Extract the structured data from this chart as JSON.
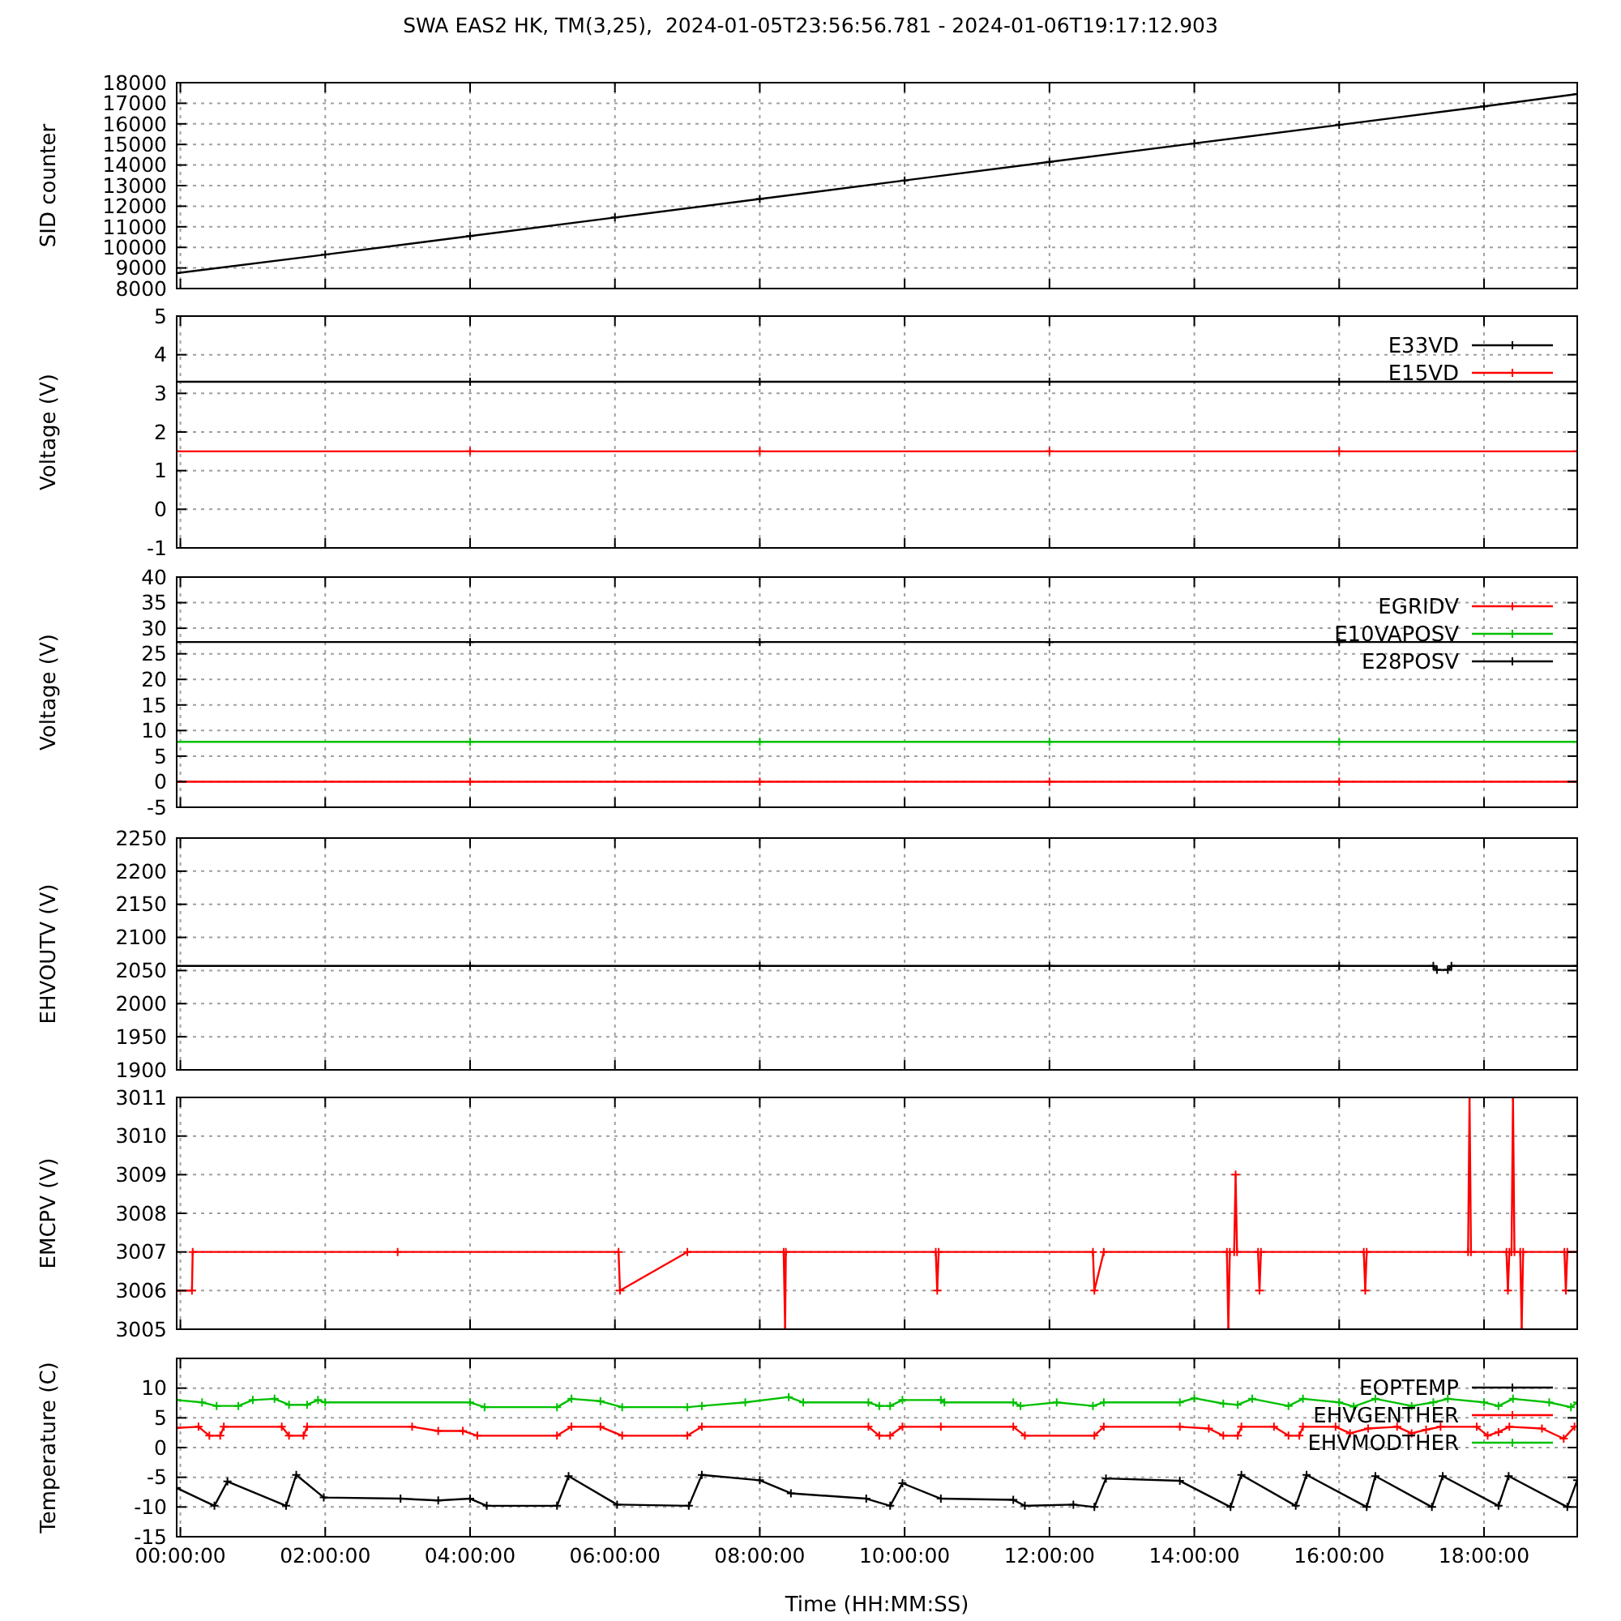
{
  "chart_data": [
    {
      "type": "line",
      "title": "SWA EAS2 HK, TM(3,25),  2024-01-05T23:56:56.781 - 2024-01-06T19:17:12.903",
      "ylabel": "SID counter",
      "xlim": [
        -0.051,
        19.287
      ],
      "xticks": [
        {
          "value": 0,
          "label": null
        },
        {
          "value": 2,
          "label": null
        },
        {
          "value": 4,
          "label": null
        },
        {
          "value": 6,
          "label": null
        },
        {
          "value": 8,
          "label": null
        },
        {
          "value": 10,
          "label": null
        },
        {
          "value": 12,
          "label": null
        },
        {
          "value": 14,
          "label": null
        },
        {
          "value": 16,
          "label": null
        },
        {
          "value": 18,
          "label": null
        }
      ],
      "ylim": [
        8000,
        18000
      ],
      "yticks": [
        8000,
        9000,
        10000,
        11000,
        12000,
        13000,
        14000,
        15000,
        16000,
        17000,
        18000
      ],
      "tick_labels": "y",
      "grid": true,
      "marker": "cross",
      "legend": false,
      "series": [
        {
          "color": "#000000",
          "x": [
            -0.051,
            2,
            4,
            6,
            8,
            10,
            12,
            14,
            16,
            18,
            19.287
          ],
          "values": [
            8750,
            9650,
            10550,
            11450,
            12350,
            13250,
            14150,
            15050,
            15950,
            16850,
            17450
          ]
        }
      ]
    },
    {
      "type": "line",
      "ylabel": "Voltage (V)",
      "xlim": [
        -0.051,
        19.287
      ],
      "xticks": [
        {
          "value": 0,
          "label": null
        },
        {
          "value": 2,
          "label": null
        },
        {
          "value": 4,
          "label": null
        },
        {
          "value": 6,
          "label": null
        },
        {
          "value": 8,
          "label": null
        },
        {
          "value": 10,
          "label": null
        },
        {
          "value": 12,
          "label": null
        },
        {
          "value": 14,
          "label": null
        },
        {
          "value": 16,
          "label": null
        },
        {
          "value": 18,
          "label": null
        }
      ],
      "ylim": [
        -1,
        5
      ],
      "yticks": [
        -1,
        0,
        1,
        2,
        3,
        4,
        5
      ],
      "tick_labels": "y",
      "grid": true,
      "marker": "cross",
      "legend": "top right",
      "series": [
        {
          "name": "E33VD",
          "color": "#000000",
          "x": [
            -0.051,
            4,
            8,
            12,
            16,
            19.287
          ],
          "values": [
            3.3,
            3.3,
            3.3,
            3.3,
            3.3,
            3.3
          ]
        },
        {
          "name": "E15VD",
          "color": "#ff0000",
          "x": [
            -0.051,
            4,
            8,
            12,
            16,
            19.287
          ],
          "values": [
            1.5,
            1.5,
            1.5,
            1.5,
            1.5,
            1.5
          ]
        }
      ]
    },
    {
      "type": "line",
      "ylabel": "Voltage (V)",
      "xlim": [
        -0.051,
        19.287
      ],
      "xticks": [
        {
          "value": 0,
          "label": null
        },
        {
          "value": 2,
          "label": null
        },
        {
          "value": 4,
          "label": null
        },
        {
          "value": 6,
          "label": null
        },
        {
          "value": 8,
          "label": null
        },
        {
          "value": 10,
          "label": null
        },
        {
          "value": 12,
          "label": null
        },
        {
          "value": 14,
          "label": null
        },
        {
          "value": 16,
          "label": null
        },
        {
          "value": 18,
          "label": null
        }
      ],
      "ylim": [
        -5,
        40
      ],
      "yticks": [
        -5,
        0,
        5,
        10,
        15,
        20,
        25,
        30,
        35,
        40
      ],
      "tick_labels": "y",
      "grid": true,
      "marker": "cross",
      "legend": "top right",
      "series": [
        {
          "name": "EGRIDV",
          "color": "#ff0000",
          "x": [
            -0.051,
            4,
            8,
            12,
            16,
            19.287
          ],
          "values": [
            0,
            0,
            0,
            0,
            0,
            0
          ]
        },
        {
          "name": "E10VAPOSV",
          "color": "#00c000",
          "x": [
            -0.051,
            4,
            8,
            12,
            16,
            19.287
          ],
          "values": [
            7.8,
            7.8,
            7.8,
            7.8,
            7.8,
            7.8
          ]
        },
        {
          "name": "E28POSV",
          "color": "#000000",
          "x": [
            -0.051,
            4,
            8,
            12,
            16,
            19.287
          ],
          "values": [
            27.3,
            27.3,
            27.3,
            27.3,
            27.3,
            27.3
          ]
        }
      ]
    },
    {
      "type": "line",
      "ylabel": "EHVOUTV (V)",
      "xlim": [
        -0.051,
        19.287
      ],
      "xticks": [
        {
          "value": 0,
          "label": null
        },
        {
          "value": 2,
          "label": null
        },
        {
          "value": 4,
          "label": null
        },
        {
          "value": 6,
          "label": null
        },
        {
          "value": 8,
          "label": null
        },
        {
          "value": 10,
          "label": null
        },
        {
          "value": 12,
          "label": null
        },
        {
          "value": 14,
          "label": null
        },
        {
          "value": 16,
          "label": null
        },
        {
          "value": 18,
          "label": null
        }
      ],
      "ylim": [
        1900,
        2250
      ],
      "yticks": [
        1900,
        1950,
        2000,
        2050,
        2100,
        2150,
        2200,
        2250
      ],
      "tick_labels": "y",
      "grid": true,
      "marker": "cross",
      "legend": false,
      "series": [
        {
          "color": "#000000",
          "x": [
            -0.051,
            4,
            8,
            12,
            16,
            17.3,
            17.35,
            17.5,
            17.55,
            19.287
          ],
          "values": [
            2057,
            2057,
            2057,
            2057,
            2057,
            2057,
            2051,
            2051,
            2057,
            2057
          ]
        }
      ]
    },
    {
      "type": "line",
      "ylabel": "EMCPV (V)",
      "xlim": [
        -0.051,
        19.287
      ],
      "xticks": [
        {
          "value": 0,
          "label": null
        },
        {
          "value": 2,
          "label": null
        },
        {
          "value": 4,
          "label": null
        },
        {
          "value": 6,
          "label": null
        },
        {
          "value": 8,
          "label": null
        },
        {
          "value": 10,
          "label": null
        },
        {
          "value": 12,
          "label": null
        },
        {
          "value": 14,
          "label": null
        },
        {
          "value": 16,
          "label": null
        },
        {
          "value": 18,
          "label": null
        }
      ],
      "ylim": [
        3005,
        3011
      ],
      "yticks": [
        3005,
        3006,
        3007,
        3008,
        3009,
        3010,
        3011
      ],
      "tick_labels": "y",
      "grid": true,
      "marker": "cross",
      "legend": false,
      "series": [
        {
          "color": "#ff0000",
          "x": [
            -0.051,
            0.16,
            0.17,
            3,
            6.05,
            6.07,
            7.0,
            8.33,
            8.35,
            8.36,
            10.43,
            10.45,
            10.47,
            12.6,
            12.62,
            12.75,
            14.45,
            14.47,
            14.49,
            14.55,
            14.57,
            14.59,
            14.88,
            14.9,
            14.92,
            16.34,
            16.36,
            16.38,
            17.78,
            17.8,
            17.82,
            18.31,
            18.33,
            18.35,
            18.38,
            18.4,
            18.42,
            18.5,
            18.52,
            18.54,
            19.11,
            19.13,
            19.15,
            19.287
          ],
          "values": [
            3006,
            3006,
            3007,
            3007,
            3007,
            3006,
            3007,
            3007,
            3005,
            3007,
            3007,
            3006,
            3007,
            3007,
            3006,
            3007,
            3007,
            3005,
            3007,
            3007,
            3009,
            3007,
            3007,
            3006,
            3007,
            3007,
            3006,
            3007,
            3007,
            3011,
            3007,
            3007,
            3006,
            3007,
            3007,
            3011,
            3007,
            3007,
            3005,
            3007,
            3007,
            3006,
            3007,
            3007
          ]
        }
      ]
    },
    {
      "type": "line",
      "ylabel": "Temperature (C)",
      "xlabel": "Time (HH:MM:SS)",
      "xlim": [
        -0.051,
        19.287
      ],
      "xticks": [
        {
          "value": 0,
          "label": "00:00:00"
        },
        {
          "value": 2,
          "label": "02:00:00"
        },
        {
          "value": 4,
          "label": "04:00:00"
        },
        {
          "value": 6,
          "label": "06:00:00"
        },
        {
          "value": 8,
          "label": "08:00:00"
        },
        {
          "value": 10,
          "label": "10:00:00"
        },
        {
          "value": 12,
          "label": "12:00:00"
        },
        {
          "value": 14,
          "label": "14:00:00"
        },
        {
          "value": 16,
          "label": "16:00:00"
        },
        {
          "value": 18,
          "label": "18:00:00"
        }
      ],
      "ylim": [
        -15,
        15
      ],
      "yticks": [
        -15,
        -10,
        -5,
        0,
        5,
        10
      ],
      "grid": true,
      "marker": "cross",
      "legend": "top right",
      "series": [
        {
          "name": "EOPTEMP",
          "color": "#000000",
          "x": [
            -0.05,
            0.47,
            0.65,
            1.46,
            1.6,
            1.98,
            3.04,
            3.56,
            4.0,
            4.23,
            5.2,
            5.36,
            6.03,
            7.02,
            7.2,
            8.0,
            8.43,
            9.47,
            9.8,
            9.97,
            10.5,
            11.5,
            11.66,
            12.33,
            12.62,
            12.78,
            13.8,
            14.5,
            14.65,
            15.4,
            15.55,
            16.38,
            16.5,
            17.28,
            17.43,
            18.2,
            18.34,
            19.15,
            19.287
          ],
          "values": [
            -6.8,
            -9.8,
            -5.7,
            -9.8,
            -4.6,
            -8.4,
            -8.6,
            -8.9,
            -8.6,
            -9.8,
            -9.8,
            -4.8,
            -9.6,
            -9.8,
            -4.6,
            -5.5,
            -7.7,
            -8.6,
            -9.8,
            -6,
            -8.6,
            -8.8,
            -9.8,
            -9.6,
            -10,
            -5.2,
            -5.6,
            -10,
            -4.6,
            -9.8,
            -4.6,
            -10,
            -4.8,
            -10,
            -4.8,
            -9.8,
            -4.8,
            -10,
            -5.5
          ]
        },
        {
          "name": "EHVGENTHER",
          "color": "#ff0000",
          "x": [
            -0.05,
            0.25,
            0.4,
            0.55,
            0.6,
            1.4,
            1.5,
            1.7,
            1.75,
            3.2,
            3.56,
            3.9,
            4.1,
            5.2,
            5.4,
            5.8,
            6.1,
            7.0,
            7.2,
            9.5,
            9.65,
            9.8,
            9.97,
            10.5,
            11.5,
            11.66,
            12.62,
            12.75,
            13.8,
            14.2,
            14.4,
            14.6,
            14.65,
            15.1,
            15.3,
            15.45,
            15.5,
            15.95,
            16.15,
            16.4,
            16.8,
            17.0,
            17.2,
            17.4,
            17.9,
            18.05,
            18.2,
            18.35,
            18.8,
            19.1,
            19.25
          ],
          "values": [
            3.3,
            3.5,
            2,
            2,
            3.5,
            3.5,
            2,
            2,
            3.5,
            3.5,
            2.8,
            2.8,
            2,
            2,
            3.5,
            3.5,
            2,
            2,
            3.5,
            3.5,
            2,
            2,
            3.5,
            3.5,
            3.5,
            2,
            2,
            3.5,
            3.5,
            3.2,
            2,
            2,
            3.5,
            3.5,
            2,
            2,
            3.5,
            3.5,
            2.4,
            3.2,
            3.5,
            2.4,
            3,
            3.5,
            3.5,
            2,
            2.6,
            3.5,
            3.2,
            1.5,
            3.5
          ]
        },
        {
          "name": "EHVMODTHER",
          "color": "#00c000",
          "x": [
            -0.05,
            0.3,
            0.5,
            0.8,
            1.0,
            1.3,
            1.5,
            1.75,
            1.9,
            2.0,
            4.0,
            4.2,
            5.2,
            5.4,
            5.8,
            6.1,
            7.0,
            7.2,
            7.8,
            8.4,
            8.6,
            9.5,
            9.65,
            9.8,
            9.97,
            10.5,
            10.55,
            11.5,
            11.6,
            12.1,
            12.6,
            12.75,
            13.8,
            14.0,
            14.4,
            14.6,
            14.8,
            15.3,
            15.5,
            16.0,
            16.2,
            16.5,
            17.0,
            17.3,
            17.5,
            18.0,
            18.2,
            18.4,
            18.9,
            19.2,
            19.287
          ],
          "values": [
            8,
            7.6,
            7,
            7,
            8,
            8.2,
            7.2,
            7.2,
            8,
            7.6,
            7.6,
            6.8,
            6.8,
            8.2,
            7.8,
            6.8,
            6.8,
            7,
            7.6,
            8.5,
            7.6,
            7.6,
            7,
            7,
            8,
            8,
            7.6,
            7.6,
            7,
            7.6,
            7,
            7.6,
            7.6,
            8.3,
            7.4,
            7.2,
            8.2,
            7,
            8.2,
            7.6,
            6.9,
            8.2,
            7,
            7.6,
            8.2,
            7.6,
            7,
            8.2,
            7.6,
            6.8,
            7.6
          ]
        }
      ]
    }
  ]
}
